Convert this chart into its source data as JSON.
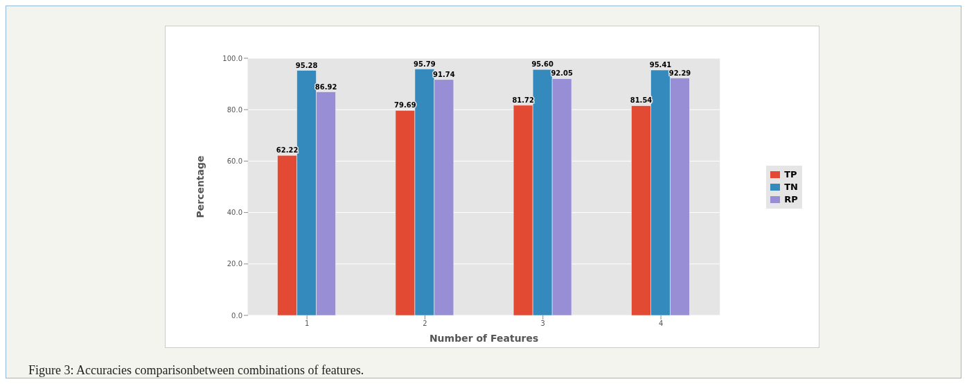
{
  "chart_data": {
    "type": "bar",
    "xlabel": "Number of Features",
    "ylabel": "Percentage",
    "categories": [
      "1",
      "2",
      "3",
      "4"
    ],
    "series": [
      {
        "name": "TP",
        "color": "#e24a33",
        "values": [
          62.22,
          79.69,
          81.72,
          81.54
        ],
        "value_labels": [
          "62.22",
          "79.69",
          "81.72",
          "81.54"
        ]
      },
      {
        "name": "TN",
        "color": "#348abd",
        "values": [
          95.28,
          95.79,
          95.6,
          95.41
        ],
        "value_labels": [
          "95.28",
          "95.79",
          "95.60",
          "95.41"
        ]
      },
      {
        "name": "RP",
        "color": "#988ed5",
        "values": [
          86.92,
          91.74,
          92.05,
          92.29
        ],
        "value_labels": [
          "86.92",
          "91.74",
          "92.05",
          "92.29"
        ]
      }
    ],
    "ylim": [
      0,
      100
    ],
    "yticks": [
      {
        "value": 0,
        "label": "0.0"
      },
      {
        "value": 20,
        "label": "20.0"
      },
      {
        "value": 40,
        "label": "40.0"
      },
      {
        "value": 60,
        "label": "60.0"
      },
      {
        "value": 80,
        "label": "80.0"
      },
      {
        "value": 100,
        "label": "100.0"
      }
    ],
    "grid": "y",
    "legend": "right",
    "annotations": [
      "Figure 3: Accuracies comparisonbetween combinations of features."
    ]
  }
}
